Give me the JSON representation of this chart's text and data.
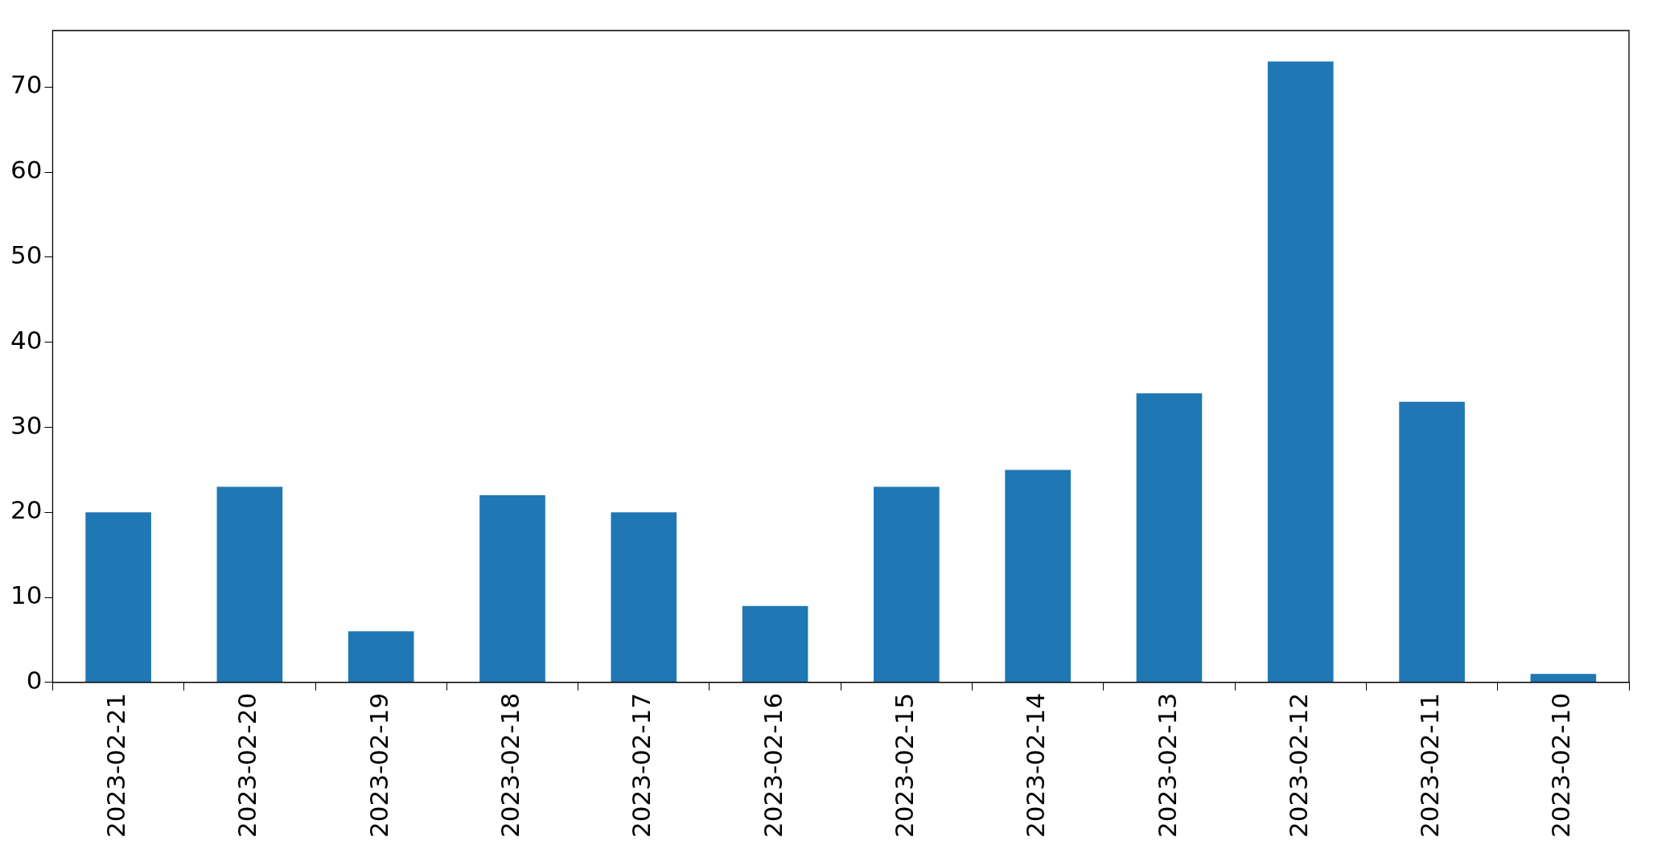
{
  "chart_data": {
    "type": "bar",
    "categories": [
      "2023-02-21",
      "2023-02-20",
      "2023-02-19",
      "2023-02-18",
      "2023-02-17",
      "2023-02-16",
      "2023-02-15",
      "2023-02-14",
      "2023-02-13",
      "2023-02-12",
      "2023-02-11",
      "2023-02-10"
    ],
    "values": [
      20,
      23,
      6,
      22,
      20,
      9,
      23,
      25,
      34,
      73,
      33,
      1
    ],
    "color": "#1f77b4",
    "ylim": [
      0,
      76.65
    ],
    "yticks": [
      0,
      10,
      20,
      30,
      40,
      50,
      60,
      70
    ]
  }
}
